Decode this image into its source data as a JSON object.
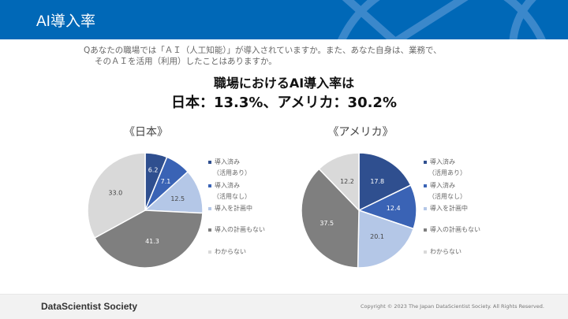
{
  "header": {
    "title": "AI導入率"
  },
  "question": {
    "line1": "Qあなたの職場では「ＡＩ（人工知能）」が導入されていますか。また、あなた自身は、業務で、",
    "line2": "そのＡＩを活用（利用）したことはありますか。"
  },
  "headline": {
    "line1": "職場におけるAI導入率は",
    "line2": "日本：13.3%、アメリカ：30.2%"
  },
  "legend": [
    {
      "label": "導入済み",
      "sub": "（活用あり）"
    },
    {
      "label": "導入済み",
      "sub": "（活用なし）"
    },
    {
      "label": "導入を計画中"
    },
    {
      "label": "導入の計画もない"
    },
    {
      "label": "わからない"
    }
  ],
  "colors": [
    "#2f4f8f",
    "#3a63b5",
    "#b4c7e7",
    "#7f7f7f",
    "#d9d9d9"
  ],
  "chart_data": [
    {
      "type": "pie",
      "title": "《日本》",
      "categories": [
        "導入済み（活用あり）",
        "導入済み（活用なし）",
        "導入を計画中",
        "導入の計画もない",
        "わからない"
      ],
      "values": [
        6.2,
        7.1,
        12.5,
        41.3,
        33.0
      ],
      "labels": [
        "6.2",
        "7.1",
        "12.5",
        "41.3",
        "33.0"
      ],
      "legend_placement": "right"
    },
    {
      "type": "pie",
      "title": "《アメリカ》",
      "categories": [
        "導入済み（活用あり）",
        "導入済み（活用なし）",
        "導入を計画中",
        "導入の計画もない",
        "わからない"
      ],
      "values": [
        17.8,
        12.4,
        20.1,
        37.5,
        12.2
      ],
      "labels": [
        "17.8",
        "12.4",
        "20.1",
        "37.5",
        "12.2"
      ],
      "legend_placement": "right"
    }
  ],
  "footer": {
    "brand": "DataScientist Society",
    "copyright": "Copyright © 2023  The Japan DataScientist Society. All Rights Reserved."
  }
}
